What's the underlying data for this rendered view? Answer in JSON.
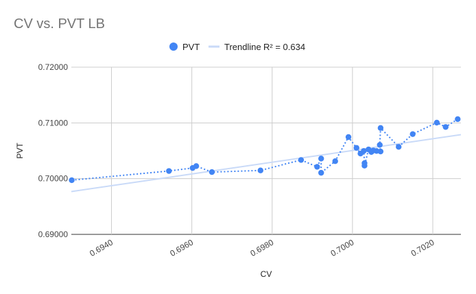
{
  "chart_data": {
    "type": "scatter",
    "title": "CV vs. PVT LB",
    "xlabel": "CV",
    "ylabel": "PVT",
    "xlim": [
      0.693,
      0.7027
    ],
    "ylim": [
      0.69,
      0.72
    ],
    "x_ticks": [
      "0.6940",
      "0.6960",
      "0.6980",
      "0.7000",
      "0.7020"
    ],
    "x_tick_values": [
      0.694,
      0.696,
      0.698,
      0.7,
      0.702
    ],
    "y_ticks": [
      "0.69000",
      "0.70000",
      "0.71000",
      "0.72000"
    ],
    "y_tick_values": [
      0.69,
      0.7,
      0.71,
      0.72
    ],
    "grid": true,
    "legend_position": "top",
    "series": [
      {
        "name": "PVT",
        "color": "#4285F4",
        "connected": "dotted",
        "points": [
          [
            0.69301,
            0.69972
          ],
          [
            0.69543,
            0.70137
          ],
          [
            0.69602,
            0.70191
          ],
          [
            0.69611,
            0.70225
          ],
          [
            0.6965,
            0.70118
          ],
          [
            0.69771,
            0.70147
          ],
          [
            0.69872,
            0.70335
          ],
          [
            0.69912,
            0.70212
          ],
          [
            0.69922,
            0.7036
          ],
          [
            0.69922,
            0.70105
          ],
          [
            0.69957,
            0.70313
          ],
          [
            0.6999,
            0.70746
          ],
          [
            0.7001,
            0.70552
          ],
          [
            0.7002,
            0.7045
          ],
          [
            0.70028,
            0.70496
          ],
          [
            0.7003,
            0.70278
          ],
          [
            0.7003,
            0.70233
          ],
          [
            0.7004,
            0.70523
          ],
          [
            0.70047,
            0.70478
          ],
          [
            0.70052,
            0.70505
          ],
          [
            0.7006,
            0.70496
          ],
          [
            0.7007,
            0.70487
          ],
          [
            0.70068,
            0.70605
          ],
          [
            0.7007,
            0.70909
          ],
          [
            0.70115,
            0.7057
          ],
          [
            0.7015,
            0.70799
          ],
          [
            0.7021,
            0.71005
          ],
          [
            0.70232,
            0.70927
          ],
          [
            0.70262,
            0.71068
          ]
        ]
      }
    ],
    "trendline": {
      "label": "Trendline",
      "r2_label": "R² = 0.634",
      "color": "#C9DAF8",
      "start": [
        0.693,
        0.69768
      ],
      "end": [
        0.7027,
        0.70789
      ]
    }
  }
}
